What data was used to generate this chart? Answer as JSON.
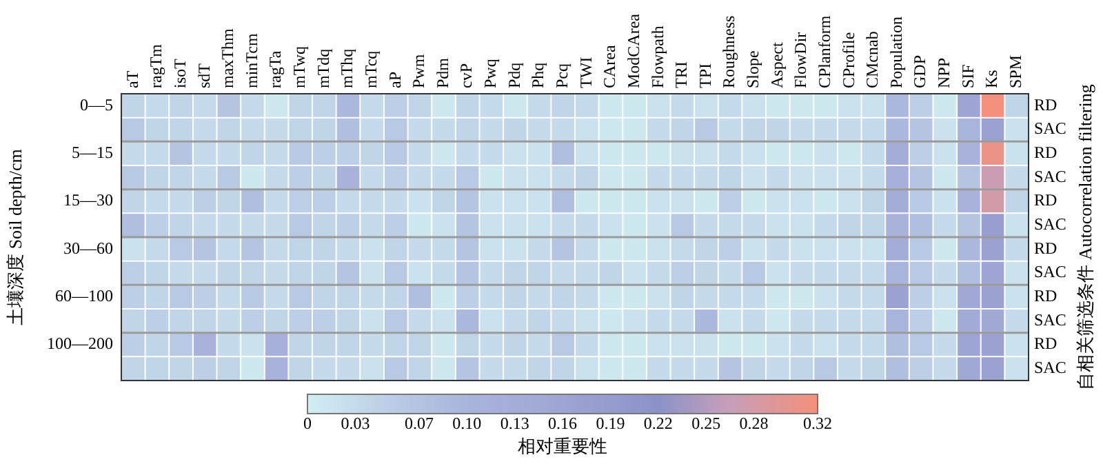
{
  "chart_data": {
    "type": "heatmap",
    "ylabel": "土壤深度 Soil depth/cm",
    "y2label": "自相关筛选条件 Autocorrelation filtering",
    "clabel": "相对重要性",
    "categories": [
      "aT",
      "ragTm",
      "isoT",
      "sdT",
      "maxThm",
      "minTcm",
      "ragTa",
      "mTwq",
      "mTdq",
      "mThq",
      "mTcq",
      "aP",
      "Pwm",
      "Pdm",
      "cvP",
      "Pwq",
      "Pdq",
      "Phq",
      "Pcq",
      "TWI",
      "CArea",
      "ModCArea",
      "Flowpath",
      "TRI",
      "TPI",
      "Roughness",
      "Slope",
      "Aspect",
      "FlowDir",
      "CPlanform",
      "CProfile",
      "CMcnab",
      "Population",
      "GDP",
      "NPP",
      "SIF",
      "Ks",
      "SPM"
    ],
    "y_categories": [
      "0—5",
      null,
      "5—15",
      null,
      "15—30",
      null,
      "30—60",
      null,
      "60—100",
      null,
      "100—200",
      null
    ],
    "y2_categories": [
      "RD",
      "SAC",
      "RD",
      "SAC",
      "RD",
      "SAC",
      "RD",
      "SAC",
      "RD",
      "SAC",
      "RD",
      "SAC"
    ],
    "cells": [
      [
        0.04,
        0.03,
        0.04,
        0.03,
        0.07,
        0.03,
        0.01,
        0.04,
        0.04,
        0.09,
        0.03,
        0.05,
        0.04,
        0.01,
        0.04,
        0.03,
        0.01,
        0.03,
        0.04,
        0.03,
        0.01,
        0.01,
        0.02,
        0.03,
        0.02,
        0.03,
        0.02,
        0.01,
        0.01,
        0.01,
        0.02,
        0.02,
        0.09,
        0.05,
        0.01,
        0.16,
        0.32,
        0.04
      ],
      [
        0.06,
        0.04,
        0.04,
        0.03,
        0.04,
        0.03,
        0.03,
        0.04,
        0.04,
        0.08,
        0.03,
        0.06,
        0.03,
        0.03,
        0.04,
        0.03,
        0.04,
        0.03,
        0.03,
        0.02,
        0.01,
        0.01,
        0.03,
        0.04,
        0.06,
        0.03,
        0.04,
        0.04,
        0.03,
        0.03,
        0.03,
        0.03,
        0.09,
        0.07,
        0.02,
        0.1,
        0.17,
        0.02
      ],
      [
        0.03,
        0.03,
        0.07,
        0.03,
        0.03,
        0.04,
        0.03,
        0.06,
        0.05,
        0.05,
        0.04,
        0.06,
        0.03,
        0.01,
        0.03,
        0.03,
        0.02,
        0.02,
        0.08,
        0.02,
        0.01,
        0.01,
        0.01,
        0.02,
        0.02,
        0.03,
        0.02,
        0.01,
        0.01,
        0.02,
        0.01,
        0.03,
        0.13,
        0.05,
        0.02,
        0.11,
        0.31,
        0.02
      ],
      [
        0.06,
        0.04,
        0.04,
        0.03,
        0.06,
        0.01,
        0.03,
        0.05,
        0.04,
        0.11,
        0.03,
        0.05,
        0.03,
        0.03,
        0.06,
        0.01,
        0.02,
        0.02,
        0.03,
        0.04,
        0.01,
        0.01,
        0.03,
        0.03,
        0.03,
        0.04,
        0.02,
        0.03,
        0.02,
        0.02,
        0.02,
        0.03,
        0.12,
        0.07,
        0.01,
        0.07,
        0.27,
        0.03
      ],
      [
        0.04,
        0.03,
        0.03,
        0.05,
        0.04,
        0.08,
        0.03,
        0.05,
        0.05,
        0.03,
        0.03,
        0.03,
        0.02,
        0.04,
        0.07,
        0.02,
        0.02,
        0.02,
        0.08,
        0.01,
        0.01,
        0.01,
        0.02,
        0.02,
        0.01,
        0.05,
        0.01,
        0.02,
        0.02,
        0.01,
        0.02,
        0.04,
        0.13,
        0.06,
        0.02,
        0.11,
        0.28,
        0.04
      ],
      [
        0.08,
        0.05,
        0.04,
        0.03,
        0.03,
        0.03,
        0.03,
        0.06,
        0.04,
        0.05,
        0.03,
        0.05,
        0.01,
        0.02,
        0.07,
        0.02,
        0.02,
        0.02,
        0.03,
        0.03,
        0.02,
        0.01,
        0.02,
        0.06,
        0.03,
        0.03,
        0.03,
        0.02,
        0.02,
        0.03,
        0.04,
        0.04,
        0.11,
        0.08,
        0.03,
        0.07,
        0.18,
        0.02
      ],
      [
        0.02,
        0.03,
        0.06,
        0.07,
        0.03,
        0.07,
        0.03,
        0.04,
        0.04,
        0.03,
        0.02,
        0.04,
        0.03,
        0.03,
        0.07,
        0.02,
        0.02,
        0.03,
        0.07,
        0.03,
        0.01,
        0.01,
        0.02,
        0.03,
        0.04,
        0.05,
        0.02,
        0.03,
        0.02,
        0.02,
        0.02,
        0.02,
        0.13,
        0.06,
        0.01,
        0.09,
        0.17,
        0.03
      ],
      [
        0.05,
        0.04,
        0.03,
        0.03,
        0.04,
        0.04,
        0.03,
        0.04,
        0.04,
        0.07,
        0.02,
        0.06,
        0.02,
        0.03,
        0.07,
        0.03,
        0.04,
        0.04,
        0.03,
        0.03,
        0.04,
        0.02,
        0.03,
        0.05,
        0.04,
        0.03,
        0.06,
        0.02,
        0.03,
        0.03,
        0.03,
        0.03,
        0.1,
        0.06,
        0.03,
        0.08,
        0.16,
        0.02
      ],
      [
        0.05,
        0.04,
        0.06,
        0.05,
        0.03,
        0.06,
        0.03,
        0.06,
        0.04,
        0.04,
        0.03,
        0.04,
        0.08,
        0.01,
        0.05,
        0.03,
        0.04,
        0.03,
        0.04,
        0.03,
        0.01,
        0.01,
        0.02,
        0.04,
        0.03,
        0.03,
        0.03,
        0.01,
        0.01,
        0.02,
        0.03,
        0.03,
        0.17,
        0.05,
        0.02,
        0.15,
        0.17,
        0.02
      ],
      [
        0.04,
        0.05,
        0.04,
        0.04,
        0.03,
        0.05,
        0.04,
        0.05,
        0.05,
        0.04,
        0.02,
        0.06,
        0.03,
        0.02,
        0.09,
        0.02,
        0.03,
        0.04,
        0.03,
        0.02,
        0.01,
        0.02,
        0.03,
        0.03,
        0.09,
        0.02,
        0.03,
        0.01,
        0.03,
        0.03,
        0.03,
        0.03,
        0.1,
        0.05,
        0.01,
        0.14,
        0.15,
        0.03
      ],
      [
        0.05,
        0.04,
        0.06,
        0.11,
        0.03,
        0.02,
        0.12,
        0.04,
        0.04,
        0.04,
        0.03,
        0.04,
        0.04,
        0.01,
        0.04,
        0.03,
        0.04,
        0.03,
        0.06,
        0.03,
        0.01,
        0.01,
        0.02,
        0.02,
        0.02,
        0.01,
        0.01,
        0.02,
        0.03,
        0.02,
        0.03,
        0.03,
        0.08,
        0.06,
        0.03,
        0.16,
        0.17,
        0.02
      ],
      [
        0.04,
        0.04,
        0.04,
        0.05,
        0.04,
        0.01,
        0.11,
        0.04,
        0.03,
        0.03,
        0.02,
        0.06,
        0.04,
        0.01,
        0.07,
        0.03,
        0.03,
        0.04,
        0.04,
        0.02,
        0.01,
        0.01,
        0.03,
        0.03,
        0.03,
        0.07,
        0.04,
        0.03,
        0.04,
        0.06,
        0.03,
        0.04,
        0.08,
        0.05,
        0.03,
        0.15,
        0.17,
        0.02
      ]
    ],
    "clim": [
      0,
      0.32
    ],
    "grid": true,
    "cticks": [
      0,
      0.03,
      0.07,
      {
        "value": 0.1,
        "label": "0.10"
      },
      0.13,
      0.16,
      0.19,
      0.22,
      0.25,
      0.28,
      0.32
    ]
  }
}
